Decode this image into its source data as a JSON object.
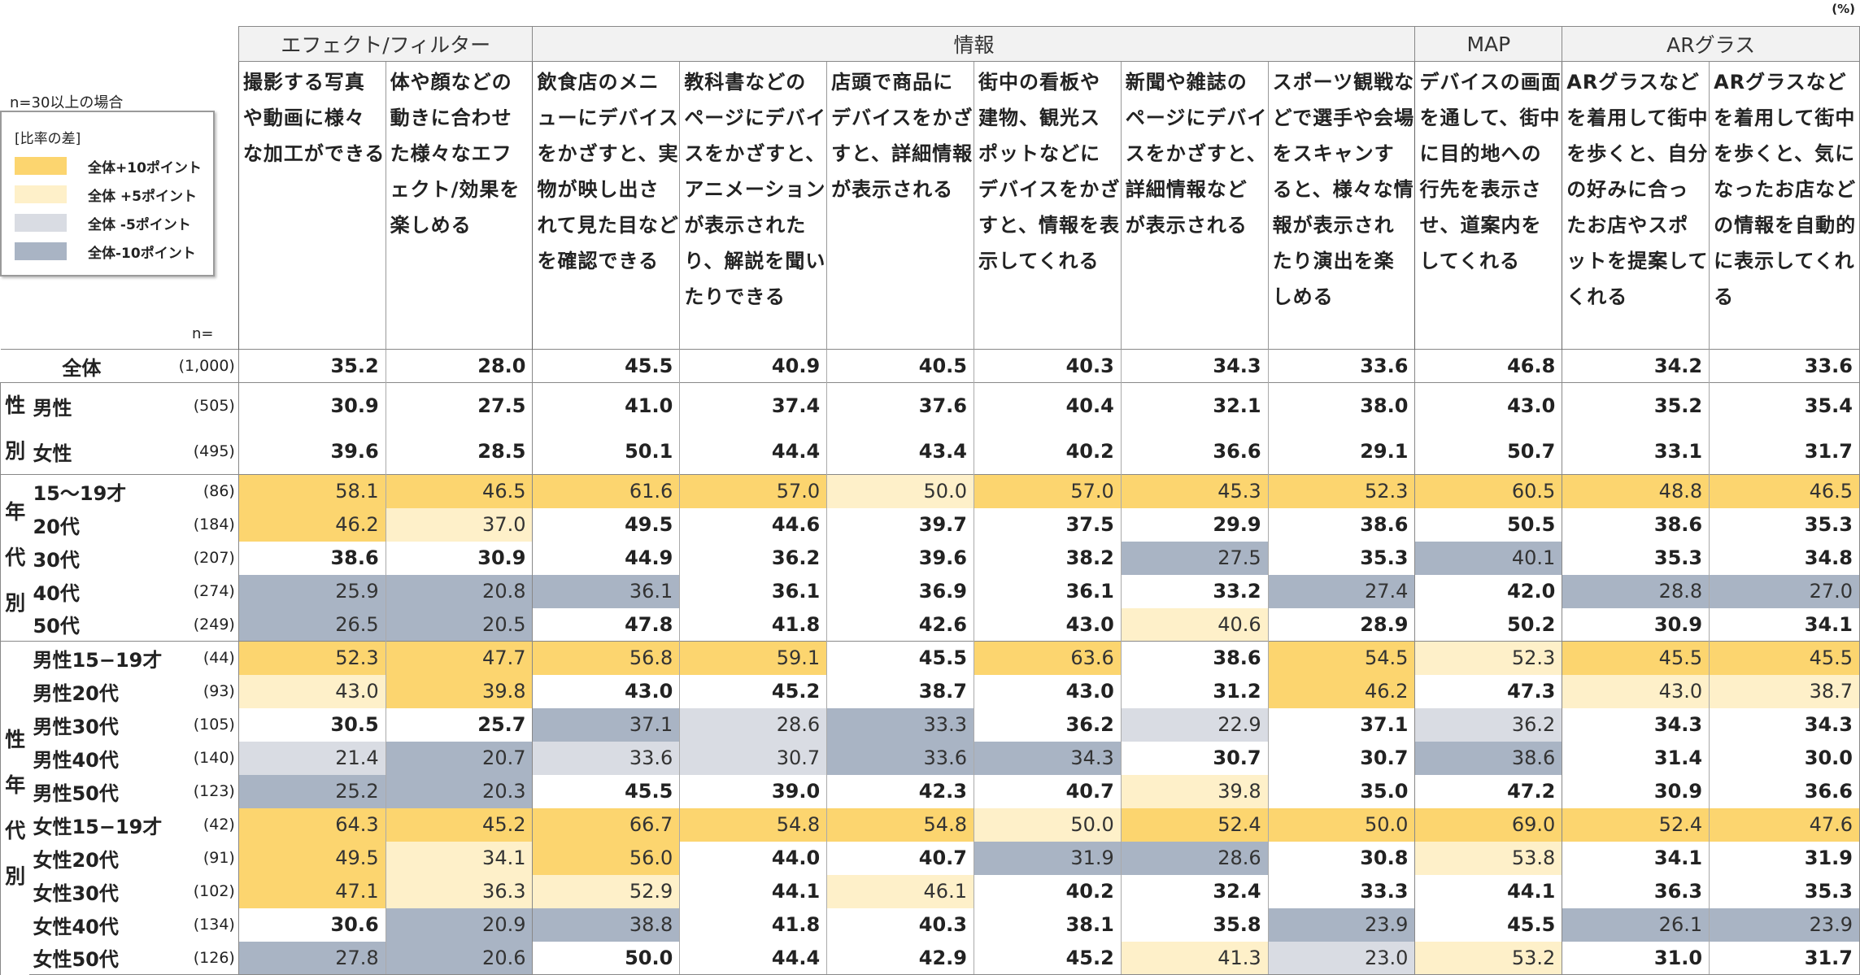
{
  "chart_data": {
    "type": "table",
    "unit": "(%)",
    "note": "n=30以上の場合",
    "legend": {
      "title": "[比率の差]",
      "items": [
        {
          "label": "全体+10ポイント",
          "color": "#fcd56f"
        },
        {
          "label": "全体 +5ポイント",
          "color": "#fef0c9"
        },
        {
          "label": "全体 -5ポイント",
          "color": "#d9dce3"
        },
        {
          "label": "全体-10ポイント",
          "color": "#a9b4c4"
        }
      ]
    },
    "n_header": "n=",
    "groups": [
      {
        "label": "エフェクト/フィルター",
        "span": 2
      },
      {
        "label": "情報",
        "span": 6
      },
      {
        "label": "MAP",
        "span": 1
      },
      {
        "label": "ARグラス",
        "span": 2
      }
    ],
    "columns": [
      "撮影する写真や動画に様々な加工ができる",
      "体や顔などの動きに合わせた様々なエフェクト/効果を楽しめる",
      "飲食店のメニューにデバイスをかざすと、実物が映し出されて見た目などを確認できる",
      "教科書などのページにデバイスをかざすと、アニメーションが表示されたり、解説を聞いたりできる",
      "店頭で商品にデバイスをかざすと、詳細情報が表示される",
      "街中の看板や建物、観光スポットなどにデバイスをかざすと、情報を表示してくれる",
      "新聞や雑誌のページにデバイスをかざすと、詳細情報などが表示される",
      "スポーツ観戦などで選手や会場をスキャンすると、様々な情報が表示されたり演出を楽しめる",
      "デバイスの画面を通して、街中に目的地への行先を表示させ、道案内をしてくれる",
      "ARグラスなどを着用して街中を歩くと、自分の好みに合ったお店やスポットを提案してくれる",
      "ARグラスなどを着用して街中を歩くと、気になったお店などの情報を自動的に表示してくれる"
    ],
    "blocks": [
      {
        "label": "",
        "start": 0,
        "span": 1
      },
      {
        "label": "性別",
        "start": 1,
        "span": 2
      },
      {
        "label": "年代別",
        "start": 3,
        "span": 5
      },
      {
        "label": "性年代別",
        "start": 8,
        "span": 10
      }
    ],
    "rows": [
      {
        "label": "全体",
        "n": "(1,000)",
        "values": [
          35.2,
          28.0,
          45.5,
          40.9,
          40.5,
          40.3,
          34.3,
          33.6,
          46.8,
          34.2,
          33.6
        ],
        "shade": [
          0,
          0,
          0,
          0,
          0,
          0,
          0,
          0,
          0,
          0,
          0
        ]
      },
      {
        "label": "男性",
        "n": "(505)",
        "values": [
          30.9,
          27.5,
          41.0,
          37.4,
          37.6,
          40.4,
          32.1,
          38.0,
          43.0,
          35.2,
          35.4
        ],
        "shade": [
          0,
          0,
          0,
          0,
          0,
          0,
          0,
          0,
          0,
          0,
          0
        ]
      },
      {
        "label": "女性",
        "n": "(495)",
        "values": [
          39.6,
          28.5,
          50.1,
          44.4,
          43.4,
          40.2,
          36.6,
          29.1,
          50.7,
          33.1,
          31.7
        ],
        "shade": [
          0,
          0,
          0,
          0,
          0,
          0,
          0,
          0,
          0,
          0,
          0
        ]
      },
      {
        "label": "15〜19才",
        "n": "(86)",
        "values": [
          58.1,
          46.5,
          61.6,
          57.0,
          50.0,
          57.0,
          45.3,
          52.3,
          60.5,
          48.8,
          46.5
        ],
        "shade": [
          2,
          2,
          2,
          2,
          1,
          2,
          2,
          2,
          2,
          2,
          2
        ]
      },
      {
        "label": "20代",
        "n": "(184)",
        "values": [
          46.2,
          37.0,
          49.5,
          44.6,
          39.7,
          37.5,
          29.9,
          38.6,
          50.5,
          38.6,
          35.3
        ],
        "shade": [
          2,
          1,
          0,
          0,
          0,
          0,
          0,
          0,
          0,
          0,
          0
        ]
      },
      {
        "label": "30代",
        "n": "(207)",
        "values": [
          38.6,
          30.9,
          44.9,
          36.2,
          39.6,
          38.2,
          27.5,
          35.3,
          40.1,
          35.3,
          34.8
        ],
        "shade": [
          0,
          0,
          0,
          0,
          0,
          0,
          -2,
          0,
          -2,
          0,
          0
        ]
      },
      {
        "label": "40代",
        "n": "(274)",
        "values": [
          25.9,
          20.8,
          36.1,
          36.1,
          36.9,
          36.1,
          33.2,
          27.4,
          42.0,
          28.8,
          27.0
        ],
        "shade": [
          -2,
          -2,
          -2,
          0,
          0,
          0,
          0,
          -2,
          0,
          -2,
          -2
        ]
      },
      {
        "label": "50代",
        "n": "(249)",
        "values": [
          26.5,
          20.5,
          47.8,
          41.8,
          42.6,
          43.0,
          40.6,
          28.9,
          50.2,
          30.9,
          34.1
        ],
        "shade": [
          -2,
          -2,
          0,
          0,
          0,
          0,
          1,
          0,
          0,
          0,
          0
        ]
      },
      {
        "label": "男性15−19才",
        "n": "(44)",
        "values": [
          52.3,
          47.7,
          56.8,
          59.1,
          45.5,
          63.6,
          38.6,
          54.5,
          52.3,
          45.5,
          45.5
        ],
        "shade": [
          2,
          2,
          2,
          2,
          0,
          2,
          0,
          2,
          1,
          2,
          2
        ]
      },
      {
        "label": "男性20代",
        "n": "(93)",
        "values": [
          43.0,
          39.8,
          43.0,
          45.2,
          38.7,
          43.0,
          31.2,
          46.2,
          47.3,
          43.0,
          38.7
        ],
        "shade": [
          1,
          2,
          0,
          0,
          0,
          0,
          0,
          2,
          0,
          1,
          1
        ]
      },
      {
        "label": "男性30代",
        "n": "(105)",
        "values": [
          30.5,
          25.7,
          37.1,
          28.6,
          33.3,
          36.2,
          22.9,
          37.1,
          36.2,
          34.3,
          34.3
        ],
        "shade": [
          0,
          0,
          -2,
          -1,
          -2,
          0,
          -1,
          0,
          -1,
          0,
          0
        ]
      },
      {
        "label": "男性40代",
        "n": "(140)",
        "values": [
          21.4,
          20.7,
          33.6,
          30.7,
          33.6,
          34.3,
          30.7,
          30.7,
          38.6,
          31.4,
          30.0
        ],
        "shade": [
          -1,
          -2,
          -1,
          -1,
          -2,
          -2,
          0,
          0,
          -2,
          0,
          0
        ]
      },
      {
        "label": "男性50代",
        "n": "(123)",
        "values": [
          25.2,
          20.3,
          45.5,
          39.0,
          42.3,
          40.7,
          39.8,
          35.0,
          47.2,
          30.9,
          36.6
        ],
        "shade": [
          -2,
          -2,
          0,
          0,
          0,
          0,
          1,
          0,
          0,
          0,
          0
        ]
      },
      {
        "label": "女性15−19才",
        "n": "(42)",
        "values": [
          64.3,
          45.2,
          66.7,
          54.8,
          54.8,
          50.0,
          52.4,
          50.0,
          69.0,
          52.4,
          47.6
        ],
        "shade": [
          2,
          2,
          2,
          2,
          2,
          1,
          2,
          2,
          2,
          2,
          2
        ]
      },
      {
        "label": "女性20代",
        "n": "(91)",
        "values": [
          49.5,
          34.1,
          56.0,
          44.0,
          40.7,
          31.9,
          28.6,
          30.8,
          53.8,
          34.1,
          31.9
        ],
        "shade": [
          2,
          1,
          2,
          0,
          0,
          -2,
          -2,
          0,
          1,
          0,
          0
        ]
      },
      {
        "label": "女性30代",
        "n": "(102)",
        "values": [
          47.1,
          36.3,
          52.9,
          44.1,
          46.1,
          40.2,
          32.4,
          33.3,
          44.1,
          36.3,
          35.3
        ],
        "shade": [
          2,
          1,
          1,
          0,
          1,
          0,
          0,
          0,
          0,
          0,
          0
        ]
      },
      {
        "label": "女性40代",
        "n": "(134)",
        "values": [
          30.6,
          20.9,
          38.8,
          41.8,
          40.3,
          38.1,
          35.8,
          23.9,
          45.5,
          26.1,
          23.9
        ],
        "shade": [
          0,
          -2,
          -2,
          0,
          0,
          0,
          0,
          -2,
          0,
          -2,
          -2
        ]
      },
      {
        "label": "女性50代",
        "n": "(126)",
        "values": [
          27.8,
          20.6,
          50.0,
          44.4,
          42.9,
          45.2,
          41.3,
          23.0,
          53.2,
          31.0,
          31.7
        ],
        "shade": [
          -2,
          -2,
          0,
          0,
          0,
          0,
          1,
          -1,
          1,
          0,
          0
        ]
      }
    ]
  }
}
